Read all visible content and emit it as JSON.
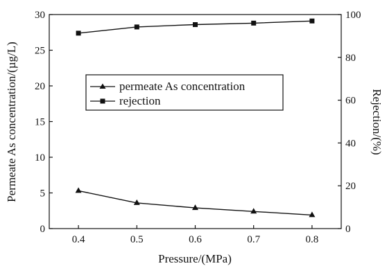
{
  "chart_data": {
    "type": "line",
    "x": [
      0.4,
      0.5,
      0.6,
      0.7,
      0.8
    ],
    "x_ticks": [
      "0.4",
      "0.5",
      "0.6",
      "0.7",
      "0.8"
    ],
    "xlim": [
      0.35,
      0.85
    ],
    "xlabel": "Pressure/(MPa)",
    "ylabel_left": "Permeate As concentration/(µg/L)",
    "ylim_left": [
      0,
      30
    ],
    "y_ticks_left": [
      "0",
      "5",
      "10",
      "15",
      "20",
      "25",
      "30"
    ],
    "ylabel_right": "Rejection/(%)",
    "ylim_right": [
      0,
      100
    ],
    "y_ticks_right": [
      "0",
      "20",
      "40",
      "60",
      "80",
      "100"
    ],
    "grid": false,
    "legend_position": "center-left",
    "series": [
      {
        "name": "permeate As concentration",
        "axis": "left",
        "marker": "triangle",
        "values": [
          5.3,
          3.6,
          2.9,
          2.4,
          1.9
        ]
      },
      {
        "name": "rejection",
        "axis": "right",
        "marker": "square",
        "values": [
          91.3,
          94.2,
          95.3,
          96.0,
          97.0
        ]
      }
    ]
  }
}
